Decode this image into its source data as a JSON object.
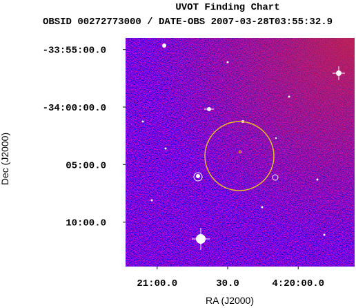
{
  "chart_data": {
    "type": "image",
    "title": "UVOT Finding Chart",
    "subtitle": "OBSID 00272773000 / DATE-OBS 2007-03-28T03:55:32.9",
    "x_label": "RA (J2000)",
    "y_label": "Dec (J2000)",
    "xlim": [
      65.306,
      64.9
    ],
    "ylim": [
      -34.231,
      -33.9
    ],
    "xticks": [
      {
        "value": 65.25,
        "label": "21:00.0"
      },
      {
        "value": 65.125,
        "label": "30.0"
      },
      {
        "value": 65.0,
        "label": "4:20:00.0"
      }
    ],
    "yticks": [
      {
        "value": -33.9167,
        "label": "-33:55:00.0"
      },
      {
        "value": -34.0,
        "label": "-34:00:00.0"
      },
      {
        "value": -34.0833,
        "label": "05:00.0"
      },
      {
        "value": -34.1667,
        "label": "10:00.0"
      }
    ]
  }
}
